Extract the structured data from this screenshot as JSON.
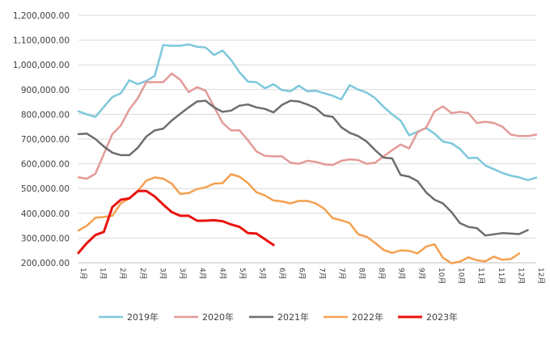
{
  "chart_data": {
    "type": "line",
    "title": "",
    "xlabel": "",
    "ylabel": "",
    "ylim": [
      200000,
      1200000
    ],
    "yticks": [
      200000,
      300000,
      400000,
      500000,
      600000,
      700000,
      800000,
      900000,
      1000000,
      1100000,
      1200000
    ],
    "ytick_labels": [
      "200,000.00",
      "300,000.00",
      "400,000.00",
      "500,000.00",
      "600,000.00",
      "700,000.00",
      "800,000.00",
      "900,000.00",
      "1,000,000.00",
      "1,100,000.00",
      "1,200,000.00"
    ],
    "x_tick_labels": [
      "1月",
      "1月",
      "2月",
      "2月",
      "3月",
      "3月",
      "4月",
      "4月",
      "5月",
      "5月",
      "6月",
      "6月",
      "7月",
      "7月",
      "8月",
      "8月",
      "9月",
      "9月",
      "10月",
      "10月",
      "11月",
      "11月",
      "12月",
      "12月"
    ],
    "grid": "horizontal",
    "legend_position": "bottom",
    "series": [
      {
        "name": "2019年",
        "color": "#7ec8dc",
        "values": [
          812000,
          800000,
          790000,
          830000,
          870000,
          885000,
          938000,
          922000,
          935000,
          955000,
          1080000,
          1077000,
          1077000,
          1083000,
          1073000,
          1070000,
          1040000,
          1058000,
          1020000,
          970000,
          932000,
          930000,
          905000,
          922000,
          898000,
          893000,
          916000,
          893000,
          895000,
          885000,
          875000,
          860000,
          918000,
          900000,
          888000,
          865000,
          830000,
          800000,
          775000,
          715000,
          730000,
          745000,
          722000,
          690000,
          683000,
          660000,
          623000,
          625000,
          593000,
          578000,
          563000,
          552000,
          545000,
          534000,
          544000
        ]
      },
      {
        "name": "2020年",
        "color": "#e39b98",
        "values": [
          545000,
          540000,
          560000,
          640000,
          720000,
          755000,
          820000,
          865000,
          930000,
          930000,
          930000,
          965000,
          940000,
          890000,
          910000,
          895000,
          830000,
          765000,
          735000,
          735000,
          695000,
          650000,
          632000,
          630000,
          630000,
          605000,
          600000,
          612000,
          608000,
          598000,
          595000,
          612000,
          618000,
          615000,
          600000,
          605000,
          630000,
          655000,
          678000,
          662000,
          728000,
          745000,
          812000,
          832000,
          805000,
          810000,
          805000,
          765000,
          770000,
          765000,
          750000,
          718000,
          712000,
          712000,
          718000
        ]
      },
      {
        "name": "2021年",
        "color": "#6d6d6d",
        "values": [
          720000,
          722000,
          700000,
          670000,
          645000,
          635000,
          635000,
          665000,
          710000,
          735000,
          742000,
          775000,
          802000,
          828000,
          852000,
          855000,
          828000,
          810000,
          815000,
          835000,
          840000,
          828000,
          822000,
          808000,
          838000,
          855000,
          852000,
          840000,
          825000,
          795000,
          790000,
          748000,
          725000,
          712000,
          690000,
          655000,
          625000,
          622000,
          555000,
          548000,
          530000,
          485000,
          455000,
          440000,
          405000,
          360000,
          345000,
          340000,
          310000,
          315000,
          320000,
          318000,
          316000,
          332000
        ]
      },
      {
        "name": "2022年",
        "color": "#f4a04f",
        "values": [
          330000,
          350000,
          382000,
          385000,
          390000,
          440000,
          460000,
          490000,
          532000,
          545000,
          540000,
          520000,
          478000,
          482000,
          498000,
          505000,
          520000,
          522000,
          558000,
          548000,
          522000,
          485000,
          472000,
          452000,
          448000,
          440000,
          450000,
          450000,
          440000,
          418000,
          380000,
          372000,
          360000,
          315000,
          305000,
          280000,
          252000,
          240000,
          250000,
          248000,
          238000,
          265000,
          275000,
          220000,
          198000,
          205000,
          222000,
          210000,
          206000,
          225000,
          212000,
          215000,
          238000
        ]
      },
      {
        "name": "2023年",
        "color": "#e8130e",
        "values": [
          240000,
          280000,
          312000,
          325000,
          425000,
          455000,
          460000,
          490000,
          490000,
          468000,
          435000,
          405000,
          390000,
          390000,
          370000,
          370000,
          372000,
          368000,
          355000,
          345000,
          320000,
          318000,
          295000,
          272000
        ]
      }
    ]
  }
}
